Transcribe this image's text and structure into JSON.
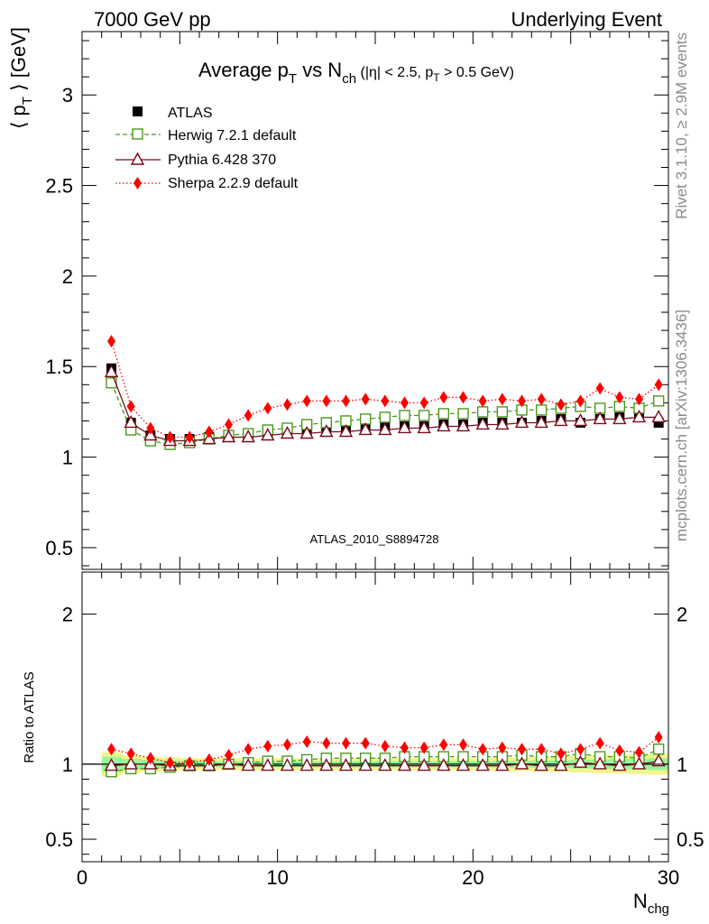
{
  "header": {
    "left": "7000 GeV pp",
    "right": "Underlying Event"
  },
  "side_labels": {
    "rivet": "Rivet 3.1.10, ≥ 2.9M events",
    "mcplots": "mcplots.cern.ch [arXiv:1306.3436]"
  },
  "watermark": "ATLAS_2010_S8894728",
  "colors": {
    "atlas": "#000000",
    "herwig": "#4b9a1e",
    "pythia": "#7a0a1e",
    "sherpa": "#ff0000",
    "band_green": "#9bf59b",
    "band_yellow": "#f2f58a"
  },
  "chart_data": [
    {
      "type": "line",
      "title": {
        "main": "Average p",
        "main_sub": "T",
        "vs": " vs N",
        "vs_sub": "ch",
        "cut1": " (|η| < 2.5, p",
        "cut1_sub": "T",
        "cut2": " > 0.5 GeV)"
      },
      "ylabel": {
        "open": "⟨ p",
        "sub": "T",
        "close": " ⟩ [GeV]"
      },
      "xlim": [
        0,
        30
      ],
      "ylim": [
        0.38,
        3.35
      ],
      "yticks": [
        {
          "v": 0.5,
          "label": "0.5"
        },
        {
          "v": 1,
          "label": "1"
        },
        {
          "v": 1.5,
          "label": "1.5"
        },
        {
          "v": 2,
          "label": "2"
        },
        {
          "v": 2.5,
          "label": "2.5"
        },
        {
          "v": 3,
          "label": "3"
        }
      ],
      "legend_position": "top-left",
      "x": [
        1.5,
        2.5,
        3.5,
        4.5,
        5.5,
        6.5,
        7.5,
        8.5,
        9.5,
        10.5,
        11.5,
        12.5,
        13.5,
        14.5,
        15.5,
        16.5,
        17.5,
        18.5,
        19.5,
        20.5,
        21.5,
        22.5,
        23.5,
        24.5,
        25.5,
        26.5,
        27.5,
        28.5,
        29.5
      ],
      "series": [
        {
          "key": "atlas",
          "name": "ATLAS",
          "marker": "filled-square",
          "line": "none",
          "values": [
            1.49,
            1.19,
            1.12,
            1.1,
            1.1,
            1.11,
            1.11,
            1.12,
            1.13,
            1.14,
            1.14,
            1.15,
            1.15,
            1.16,
            1.17,
            1.17,
            1.17,
            1.18,
            1.18,
            1.19,
            1.19,
            1.19,
            1.2,
            1.21,
            1.19,
            1.21,
            1.22,
            1.22,
            1.19
          ]
        },
        {
          "key": "herwig",
          "name": "Herwig 7.2.1 default",
          "marker": "open-square",
          "line": "dashed",
          "values": [
            1.41,
            1.15,
            1.09,
            1.07,
            1.08,
            1.1,
            1.12,
            1.13,
            1.15,
            1.16,
            1.18,
            1.19,
            1.2,
            1.21,
            1.22,
            1.23,
            1.23,
            1.24,
            1.24,
            1.25,
            1.25,
            1.26,
            1.26,
            1.27,
            1.28,
            1.27,
            1.28,
            1.27,
            1.31
          ]
        },
        {
          "key": "pythia",
          "name": "Pythia 6.428 370",
          "marker": "open-triangle",
          "line": "solid",
          "values": [
            1.47,
            1.19,
            1.12,
            1.09,
            1.09,
            1.1,
            1.11,
            1.11,
            1.12,
            1.13,
            1.13,
            1.14,
            1.14,
            1.15,
            1.15,
            1.16,
            1.16,
            1.17,
            1.17,
            1.18,
            1.18,
            1.19,
            1.19,
            1.2,
            1.2,
            1.21,
            1.21,
            1.22,
            1.22
          ]
        },
        {
          "key": "sherpa",
          "name": "Sherpa 2.2.9 default",
          "marker": "filled-diamond",
          "line": "dotted",
          "values": [
            1.64,
            1.28,
            1.16,
            1.11,
            1.11,
            1.14,
            1.18,
            1.23,
            1.27,
            1.29,
            1.31,
            1.31,
            1.31,
            1.32,
            1.31,
            1.3,
            1.3,
            1.33,
            1.33,
            1.31,
            1.32,
            1.31,
            1.32,
            1.29,
            1.31,
            1.38,
            1.33,
            1.32,
            1.4
          ]
        }
      ]
    },
    {
      "type": "line",
      "ylabel": "Ratio to ATLAS",
      "xlabel": {
        "main": "N",
        "sub": "chg"
      },
      "xlim": [
        0,
        30
      ],
      "ylim": [
        0.35,
        2.28
      ],
      "xticks": [
        {
          "v": 0,
          "label": "0"
        },
        {
          "v": 10,
          "label": "10"
        },
        {
          "v": 20,
          "label": "20"
        },
        {
          "v": 30,
          "label": "30"
        }
      ],
      "yticks": [
        {
          "v": 0.5,
          "label": "0.5"
        },
        {
          "v": 1,
          "label": "1"
        },
        {
          "v": 2,
          "label": "2"
        }
      ],
      "reference": 1,
      "band_yellow_halfwidth": [
        0.08,
        0.06,
        0.05,
        0.045,
        0.04,
        0.04,
        0.04,
        0.04,
        0.04,
        0.04,
        0.04,
        0.04,
        0.04,
        0.04,
        0.04,
        0.04,
        0.04,
        0.04,
        0.04,
        0.04,
        0.045,
        0.045,
        0.05,
        0.05,
        0.055,
        0.06,
        0.06,
        0.065,
        0.07
      ],
      "band_green_halfwidth": [
        0.05,
        0.035,
        0.03,
        0.025,
        0.022,
        0.02,
        0.02,
        0.02,
        0.02,
        0.02,
        0.02,
        0.02,
        0.02,
        0.02,
        0.02,
        0.02,
        0.02,
        0.02,
        0.02,
        0.02,
        0.022,
        0.022,
        0.025,
        0.025,
        0.03,
        0.03,
        0.035,
        0.035,
        0.04
      ],
      "x": [
        1.5,
        2.5,
        3.5,
        4.5,
        5.5,
        6.5,
        7.5,
        8.5,
        9.5,
        10.5,
        11.5,
        12.5,
        13.5,
        14.5,
        15.5,
        16.5,
        17.5,
        18.5,
        19.5,
        20.5,
        21.5,
        22.5,
        23.5,
        24.5,
        25.5,
        26.5,
        27.5,
        28.5,
        29.5
      ],
      "series": [
        {
          "key": "herwig",
          "marker": "open-square",
          "line": "dashed",
          "values": [
            0.95,
            0.97,
            0.97,
            0.98,
            0.99,
            0.99,
            1.0,
            1.01,
            1.02,
            1.02,
            1.03,
            1.04,
            1.04,
            1.04,
            1.04,
            1.05,
            1.05,
            1.05,
            1.05,
            1.05,
            1.05,
            1.06,
            1.05,
            1.05,
            1.07,
            1.05,
            1.05,
            1.04,
            1.1
          ]
        },
        {
          "key": "pythia",
          "marker": "open-triangle",
          "line": "solid",
          "values": [
            0.99,
            1.0,
            1.0,
            0.99,
            0.99,
            0.99,
            1.0,
            0.99,
            0.99,
            0.99,
            0.99,
            0.99,
            0.99,
            0.99,
            0.99,
            0.99,
            0.99,
            0.99,
            0.99,
            0.99,
            0.99,
            1.0,
            0.99,
            0.99,
            1.01,
            1.0,
            0.99,
            1.0,
            1.02
          ]
        },
        {
          "key": "sherpa",
          "marker": "filled-diamond",
          "line": "dotted",
          "values": [
            1.1,
            1.07,
            1.04,
            1.01,
            1.01,
            1.03,
            1.06,
            1.1,
            1.12,
            1.13,
            1.15,
            1.14,
            1.14,
            1.14,
            1.12,
            1.11,
            1.11,
            1.13,
            1.13,
            1.1,
            1.11,
            1.1,
            1.1,
            1.07,
            1.1,
            1.14,
            1.09,
            1.08,
            1.18
          ]
        }
      ]
    }
  ]
}
